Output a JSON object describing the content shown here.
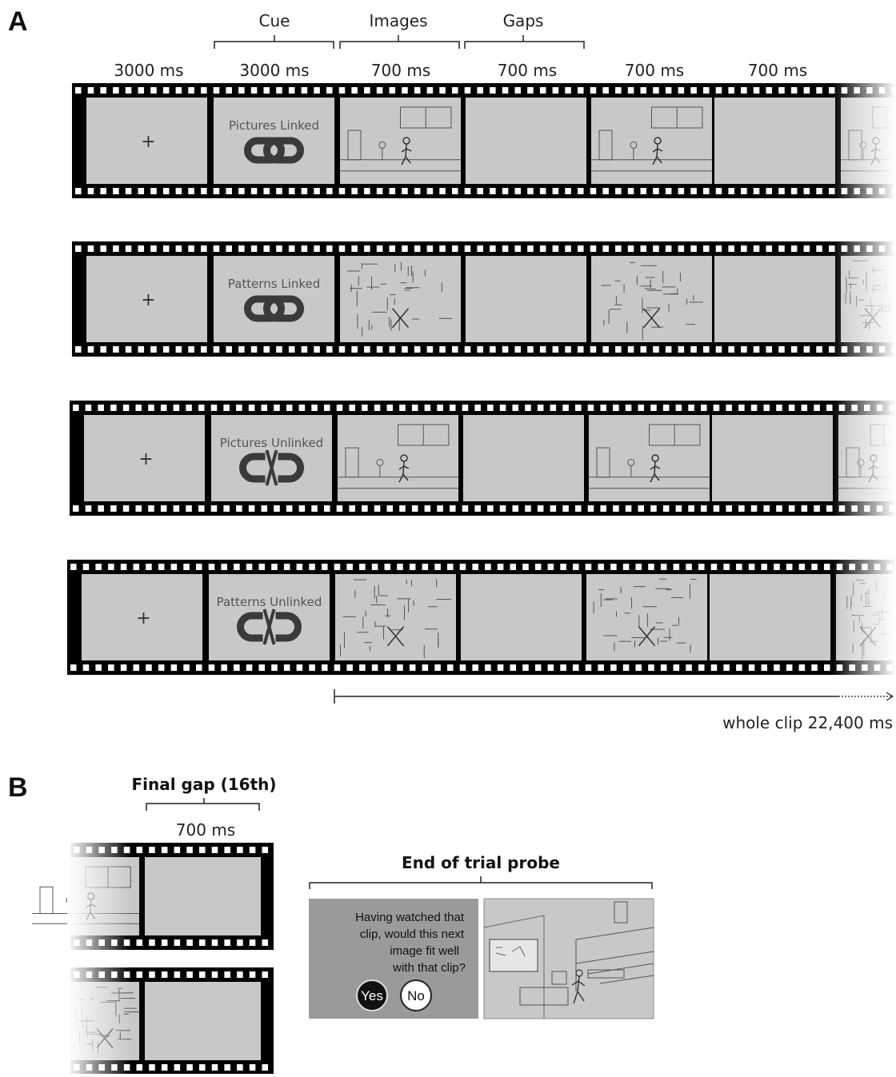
{
  "panels": {
    "a": "A",
    "b": "B"
  },
  "labels": {
    "cue": "Cue",
    "images": "Images",
    "gaps": "Gaps",
    "whole_clip": "whole clip 22,400 ms",
    "final_gap": "Final gap (16th)",
    "final_gap_duration": "700 ms",
    "end_probe": "End of trial probe"
  },
  "durations": [
    "3000 ms",
    "3000 ms",
    "700 ms",
    "700 ms",
    "700 ms",
    "700 ms"
  ],
  "strips": [
    {
      "cue": "Pictures Linked",
      "icon": "link-icon",
      "content": "scene"
    },
    {
      "cue": "Patterns Linked",
      "icon": "link-icon",
      "content": "pattern"
    },
    {
      "cue": "Pictures Unlinked",
      "icon": "broken-link-icon",
      "content": "scene"
    },
    {
      "cue": "Patterns Unlinked",
      "icon": "broken-link-icon",
      "content": "pattern"
    }
  ],
  "probe": {
    "question_lines": [
      "Having watched that",
      "clip, would this next",
      "image fit well",
      "with that clip?"
    ],
    "yes": "Yes",
    "no": "No"
  },
  "colors": {
    "film": "#000000",
    "frame": "#c8c8c8",
    "probe_panel": "#9a9a9a"
  }
}
